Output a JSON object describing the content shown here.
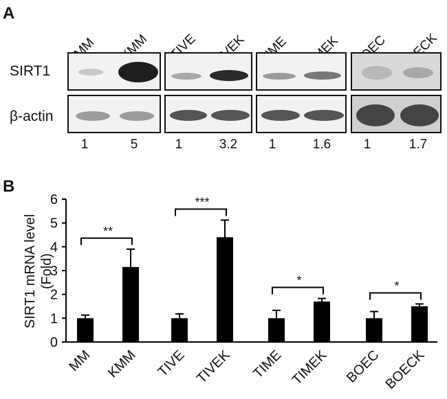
{
  "panelA": {
    "label": "A",
    "lanes": [
      "MM",
      "KMM",
      "TIVE",
      "TIVEK",
      "TIME",
      "TIMEK",
      "BOEC",
      "BOECK"
    ],
    "rows": [
      "SIRT1",
      "β-actin"
    ],
    "quantification": [
      "1",
      "5",
      "1",
      "3.2",
      "1",
      "1.6",
      "1",
      "1.7"
    ]
  },
  "panelB": {
    "label": "B"
  },
  "chart_data": {
    "type": "bar",
    "title": "",
    "xlabel": "",
    "ylabel": "SIRT1 mRNA level (Fold)",
    "ylabel_lines": [
      "SIRT1 mRNA level",
      "(Fold)"
    ],
    "ylim": [
      0,
      6
    ],
    "yticks": [
      0,
      1,
      2,
      3,
      4,
      5,
      6
    ],
    "categories": [
      "MM",
      "KMM",
      "TIVE",
      "TIVEK",
      "TIME",
      "TIMEK",
      "BOEC",
      "BOECK"
    ],
    "values": [
      1.0,
      3.15,
      1.0,
      4.4,
      1.0,
      1.7,
      1.0,
      1.5
    ],
    "errors": [
      0.13,
      0.75,
      0.18,
      0.72,
      0.33,
      0.13,
      0.28,
      0.1
    ],
    "significance": [
      {
        "pair": [
          0,
          1
        ],
        "label": "**"
      },
      {
        "pair": [
          2,
          3
        ],
        "label": "***"
      },
      {
        "pair": [
          4,
          5
        ],
        "label": "*"
      },
      {
        "pair": [
          6,
          7
        ],
        "label": "*"
      }
    ],
    "colors": {
      "bar": "#000000"
    }
  }
}
